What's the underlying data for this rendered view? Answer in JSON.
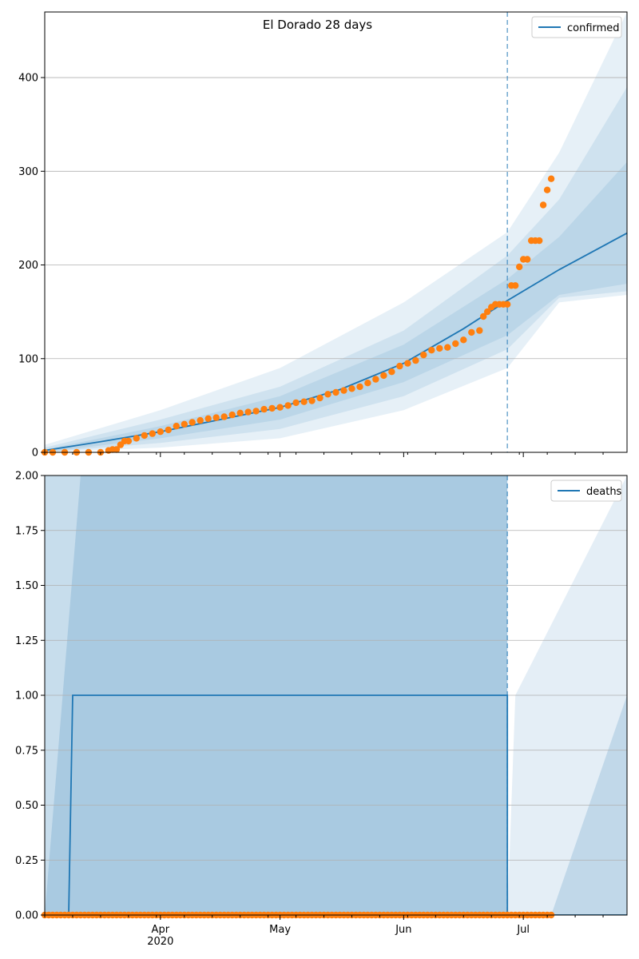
{
  "chart_data": [
    {
      "type": "line",
      "title": "El Dorado 28 days",
      "xlabel": "",
      "ylabel": "",
      "x_range": [
        "2020-03-03",
        "2020-07-27"
      ],
      "ylim": [
        0,
        470
      ],
      "yticks": [
        0,
        100,
        200,
        300,
        400
      ],
      "xticks": [
        {
          "date": "2020-04-01",
          "label": "Apr",
          "sublabel": "2020"
        },
        {
          "date": "2020-05-01",
          "label": "May",
          "sublabel": ""
        },
        {
          "date": "2020-06-01",
          "label": "Jun",
          "sublabel": ""
        },
        {
          "date": "2020-07-01",
          "label": "Jul",
          "sublabel": ""
        }
      ],
      "grid": "horizontal",
      "legend": "top-right",
      "vline_date": "2020-06-27",
      "colors": {
        "line": "#1f77b4",
        "points": "#ff7f0e",
        "band": "#1f77b4"
      },
      "series": [
        {
          "name": "confirmed",
          "kind": "line",
          "x": [
            "2020-03-03",
            "2020-03-18",
            "2020-04-01",
            "2020-04-16",
            "2020-05-01",
            "2020-05-16",
            "2020-06-01",
            "2020-06-16",
            "2020-06-27",
            "2020-07-10",
            "2020-07-27"
          ],
          "y": [
            2,
            12,
            22,
            35,
            48,
            67,
            95,
            132,
            162,
            195,
            234
          ]
        },
        {
          "name": "",
          "kind": "points",
          "x": [
            "2020-03-03",
            "2020-03-05",
            "2020-03-08",
            "2020-03-11",
            "2020-03-14",
            "2020-03-17",
            "2020-03-19",
            "2020-03-20",
            "2020-03-21",
            "2020-03-22",
            "2020-03-23",
            "2020-03-24",
            "2020-03-26",
            "2020-03-28",
            "2020-03-30",
            "2020-04-01",
            "2020-04-03",
            "2020-04-05",
            "2020-04-07",
            "2020-04-09",
            "2020-04-11",
            "2020-04-13",
            "2020-04-15",
            "2020-04-17",
            "2020-04-19",
            "2020-04-21",
            "2020-04-23",
            "2020-04-25",
            "2020-04-27",
            "2020-04-29",
            "2020-05-01",
            "2020-05-03",
            "2020-05-05",
            "2020-05-07",
            "2020-05-09",
            "2020-05-11",
            "2020-05-13",
            "2020-05-15",
            "2020-05-17",
            "2020-05-19",
            "2020-05-21",
            "2020-05-23",
            "2020-05-25",
            "2020-05-27",
            "2020-05-29",
            "2020-05-31",
            "2020-06-02",
            "2020-06-04",
            "2020-06-06",
            "2020-06-08",
            "2020-06-10",
            "2020-06-12",
            "2020-06-14",
            "2020-06-16",
            "2020-06-18",
            "2020-06-20",
            "2020-06-21",
            "2020-06-22",
            "2020-06-23",
            "2020-06-24",
            "2020-06-25",
            "2020-06-26",
            "2020-06-27",
            "2020-06-28",
            "2020-06-29",
            "2020-06-30",
            "2020-07-01",
            "2020-07-02",
            "2020-07-03",
            "2020-07-04",
            "2020-07-05",
            "2020-07-06",
            "2020-07-07",
            "2020-07-08"
          ],
          "y": [
            0,
            0,
            0,
            0,
            0,
            0,
            2,
            3,
            3,
            8,
            12,
            12,
            15,
            18,
            20,
            22,
            24,
            28,
            30,
            32,
            34,
            36,
            37,
            38,
            40,
            42,
            43,
            44,
            46,
            47,
            48,
            50,
            53,
            54,
            55,
            58,
            62,
            64,
            66,
            68,
            70,
            74,
            78,
            82,
            86,
            92,
            95,
            98,
            104,
            109,
            111,
            112,
            116,
            120,
            128,
            130,
            145,
            150,
            155,
            158,
            158,
            158,
            158,
            178,
            178,
            198,
            206,
            206,
            226,
            226,
            226,
            264,
            280,
            292
          ]
        }
      ],
      "bands": [
        {
          "x": [
            "2020-03-03",
            "2020-04-01",
            "2020-05-01",
            "2020-06-01",
            "2020-06-27",
            "2020-07-10",
            "2020-07-27"
          ],
          "lower": [
            0,
            5,
            15,
            45,
            90,
            160,
            168
          ],
          "upper": [
            8,
            45,
            90,
            160,
            235,
            320,
            470
          ]
        },
        {
          "x": [
            "2020-03-03",
            "2020-04-01",
            "2020-05-01",
            "2020-06-01",
            "2020-06-27",
            "2020-07-10",
            "2020-07-27"
          ],
          "lower": [
            0,
            10,
            25,
            60,
            110,
            165,
            172
          ],
          "upper": [
            5,
            35,
            70,
            130,
            210,
            270,
            390
          ]
        },
        {
          "x": [
            "2020-03-03",
            "2020-04-01",
            "2020-05-01",
            "2020-06-01",
            "2020-06-27",
            "2020-07-10",
            "2020-07-27"
          ],
          "lower": [
            0,
            15,
            35,
            75,
            125,
            168,
            180
          ],
          "upper": [
            3,
            28,
            60,
            115,
            185,
            230,
            310
          ]
        }
      ]
    },
    {
      "type": "line",
      "title": "",
      "xlabel": "",
      "ylabel": "",
      "x_range": [
        "2020-03-03",
        "2020-07-27"
      ],
      "ylim": [
        0,
        2
      ],
      "yticks": [
        0,
        0.25,
        0.5,
        0.75,
        1.0,
        1.25,
        1.5,
        1.75,
        2.0
      ],
      "ytick_labels": [
        "0.00",
        "0.25",
        "0.50",
        "0.75",
        "1.00",
        "1.25",
        "1.50",
        "1.75",
        "2.00"
      ],
      "xticks": [
        {
          "date": "2020-04-01",
          "label": "Apr",
          "sublabel": "2020"
        },
        {
          "date": "2020-05-01",
          "label": "May",
          "sublabel": ""
        },
        {
          "date": "2020-06-01",
          "label": "Jun",
          "sublabel": ""
        },
        {
          "date": "2020-07-01",
          "label": "Jul",
          "sublabel": ""
        }
      ],
      "grid": "horizontal",
      "legend": "top-right",
      "vline_date": "2020-06-27",
      "colors": {
        "line": "#1f77b4",
        "points": "#ff7f0e",
        "band": "#1f77b4"
      },
      "series": [
        {
          "name": "deaths",
          "kind": "line",
          "x": [
            "2020-03-03",
            "2020-03-09",
            "2020-03-10",
            "2020-06-27",
            "2020-06-27",
            "2020-07-27"
          ],
          "y": [
            0,
            0,
            1,
            1,
            0,
            0
          ]
        },
        {
          "name": "",
          "kind": "points",
          "x_start": "2020-03-03",
          "x_end": "2020-07-08",
          "step_days": 1,
          "value": 0
        }
      ],
      "bands": [
        {
          "x": [
            "2020-03-03",
            "2020-03-12",
            "2020-06-27",
            "2020-06-27",
            "2020-06-29",
            "2020-07-27"
          ],
          "lower": [
            0,
            0,
            0,
            0,
            0,
            0
          ],
          "upper": [
            2,
            2,
            2,
            0,
            1,
            2
          ],
          "opacity": 0.12
        },
        {
          "x": [
            "2020-03-03",
            "2020-03-12",
            "2020-06-27",
            "2020-06-27",
            "2020-07-08",
            "2020-07-27"
          ],
          "lower": [
            0,
            0,
            0,
            0,
            0,
            0
          ],
          "upper": [
            0.0,
            2,
            2,
            0,
            0,
            1
          ],
          "opacity": 0.18
        },
        {
          "x": [
            "2020-03-03",
            "2020-03-12",
            "2020-06-27"
          ],
          "lower": [
            0,
            0,
            0
          ],
          "upper": [
            2,
            2,
            2
          ],
          "opacity": 0.14
        }
      ]
    }
  ]
}
